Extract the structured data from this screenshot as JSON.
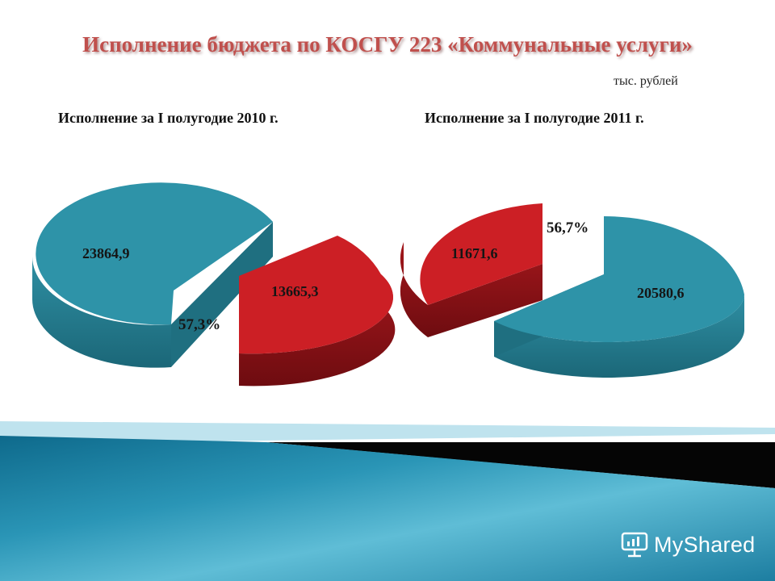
{
  "header": {
    "title": "Исполнение бюджета по КОСГУ 223 «Коммунальные услуги»",
    "units": "тыс. рублей"
  },
  "colors": {
    "executed": "#2e93a8",
    "remaining": "#cc1f25",
    "title": "#c0504d"
  },
  "chart_data": [
    {
      "type": "pie",
      "title": "Исполнение за I полугодие 2010 г.",
      "slices": [
        {
          "label": "23864,9",
          "value": 23864.9,
          "color": "#2e93a8"
        },
        {
          "label": "13665,3",
          "value": 13665.3,
          "color": "#cc1f25"
        }
      ],
      "percent_label": "57,3%"
    },
    {
      "type": "pie",
      "title": "Исполнение  за I полугодие 2011 г.",
      "slices": [
        {
          "label": "11671,6",
          "value": 11671.6,
          "color": "#cc1f25"
        },
        {
          "label": "20580,6",
          "value": 20580.6,
          "color": "#2e93a8"
        }
      ],
      "percent_label": "56,7%"
    }
  ],
  "watermark": {
    "text": "MyShared",
    "icon": "presentation-board-icon"
  }
}
